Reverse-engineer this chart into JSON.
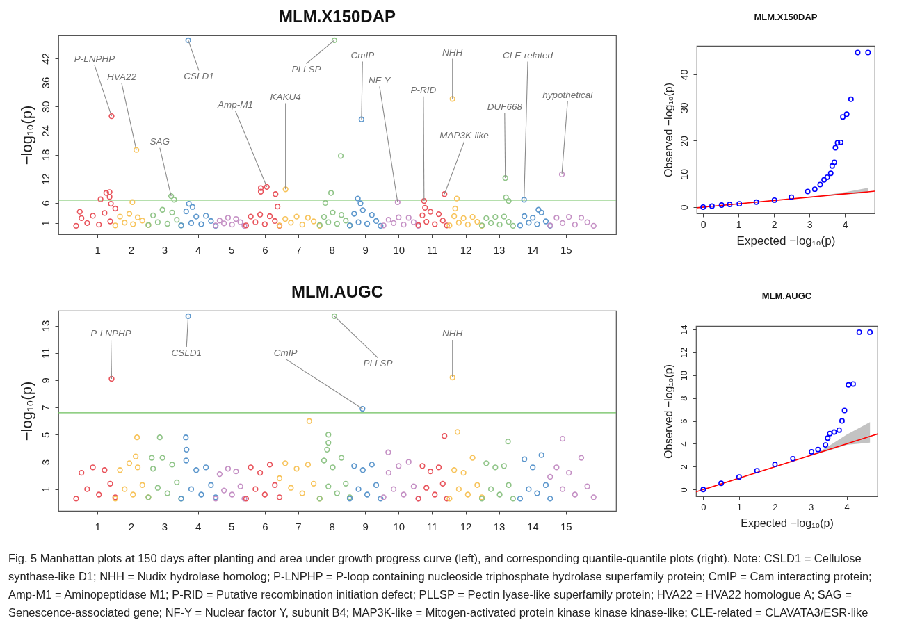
{
  "chart_data": [
    {
      "type": "scatter",
      "title": "MLM.X150DAP",
      "ylabel": "−log₁₀(p)",
      "marker": "circle",
      "xlim": [
        -0.17,
        16.5
      ],
      "ylim": [
        -1.8,
        47.7
      ],
      "xticks": [
        1,
        2,
        3,
        4,
        5,
        6,
        7,
        8,
        9,
        10,
        11,
        12,
        13,
        14,
        15
      ],
      "yticks": [
        1,
        6,
        12,
        18,
        24,
        30,
        36,
        42
      ],
      "ref_lines": [
        {
          "axis": "y",
          "value": 6.7,
          "color": "#6cbf5c"
        }
      ],
      "series": [
        {
          "type": "scatter",
          "color": "#e8525a",
          "x": [
            0.36,
            0.52,
            0.69,
            0.86,
            1.04,
            1.21,
            1.38,
            1.53,
            0.47,
            1.26,
            1.36,
            1.09,
            1.36,
            1.4,
            1.42
          ],
          "values": [
            0.3,
            2.2,
            1.0,
            2.8,
            0.6,
            3.5,
            1.4,
            4.6,
            3.8,
            8.5,
            8.7,
            6.9,
            7.5,
            5.8,
            27.6
          ]
        },
        {
          "type": "scatter",
          "color": "#f7c35a",
          "x": [
            1.53,
            1.67,
            1.81,
            1.95,
            2.06,
            2.2,
            2.34,
            2.52,
            2.04,
            2.16
          ],
          "values": [
            0.4,
            2.6,
            1.1,
            3.3,
            0.7,
            2.4,
            1.6,
            0.5,
            6.2,
            19.2
          ]
        },
        {
          "type": "scatter",
          "color": "#8fc487",
          "x": [
            2.52,
            2.66,
            2.8,
            2.94,
            3.09,
            3.23,
            3.37,
            3.5,
            3.2,
            3.29
          ],
          "values": [
            0.5,
            2.9,
            1.2,
            4.3,
            0.8,
            3.6,
            1.8,
            0.4,
            7.7,
            6.8
          ]
        },
        {
          "type": "scatter",
          "color": "#5b96cc",
          "x": [
            3.5,
            3.65,
            3.8,
            3.95,
            4.1,
            4.24,
            4.39,
            4.53,
            3.71,
            3.73,
            3.84
          ],
          "values": [
            0.4,
            3.9,
            1.0,
            2.6,
            0.7,
            2.8,
            1.5,
            0.3,
            46.5,
            5.8,
            5.0
          ]
        },
        {
          "type": "scatter",
          "color": "#c48fc4",
          "x": [
            4.53,
            4.65,
            4.78,
            4.9,
            5.02,
            5.14,
            5.27,
            5.39
          ],
          "values": [
            0.4,
            1.6,
            0.9,
            2.3,
            0.6,
            2.0,
            1.2,
            0.3
          ]
        },
        {
          "type": "scatter",
          "color": "#e8525a",
          "x": [
            5.44,
            5.58,
            5.72,
            5.86,
            6.0,
            6.15,
            6.3,
            6.44,
            5.88,
            5.88,
            6.06,
            6.32,
            6.38
          ],
          "values": [
            0.4,
            2.6,
            1.2,
            3.1,
            0.7,
            2.7,
            1.5,
            0.3,
            9.7,
            8.8,
            10.0,
            8.2,
            5.1
          ]
        },
        {
          "type": "scatter",
          "color": "#f7c35a",
          "x": [
            6.44,
            6.61,
            6.78,
            6.95,
            7.12,
            7.29,
            7.46,
            7.64,
            6.62
          ],
          "values": [
            0.4,
            2.0,
            1.1,
            2.6,
            0.6,
            2.3,
            1.4,
            0.3,
            9.4
          ]
        },
        {
          "type": "scatter",
          "color": "#8fc487",
          "x": [
            7.64,
            7.77,
            7.9,
            8.03,
            8.16,
            8.29,
            8.42,
            8.54,
            8.08,
            8.27,
            7.98,
            7.81
          ],
          "values": [
            0.5,
            2.5,
            1.2,
            3.6,
            0.8,
            3.0,
            1.6,
            0.4,
            46.5,
            17.7,
            8.5,
            6.0
          ]
        },
        {
          "type": "scatter",
          "color": "#5b96cc",
          "x": [
            8.54,
            8.67,
            8.8,
            8.93,
            9.06,
            9.2,
            9.33,
            9.46,
            8.89,
            8.78,
            8.86
          ],
          "values": [
            0.4,
            3.3,
            1.2,
            4.2,
            0.8,
            3.0,
            1.5,
            0.3,
            26.8,
            7.1,
            5.9
          ]
        },
        {
          "type": "scatter",
          "color": "#c48fc4",
          "x": [
            9.55,
            9.7,
            9.85,
            10.0,
            10.15,
            10.3,
            10.45,
            10.59,
            9.97
          ],
          "values": [
            0.4,
            1.8,
            1.0,
            2.4,
            0.6,
            2.3,
            1.2,
            0.3,
            6.2
          ]
        },
        {
          "type": "scatter",
          "color": "#e8525a",
          "x": [
            10.59,
            10.71,
            10.83,
            10.95,
            11.08,
            11.2,
            11.32,
            11.44,
            10.76,
            10.79,
            11.37
          ],
          "values": [
            0.5,
            2.9,
            1.3,
            3.8,
            0.7,
            3.2,
            1.6,
            0.4,
            6.5,
            4.8,
            8.2
          ]
        },
        {
          "type": "scatter",
          "color": "#f7c35a",
          "x": [
            11.52,
            11.66,
            11.8,
            11.94,
            12.07,
            12.21,
            12.35,
            12.49,
            11.61,
            11.74,
            11.69
          ],
          "values": [
            0.4,
            2.7,
            1.1,
            2.2,
            0.6,
            2.5,
            1.3,
            0.3,
            31.9,
            7.1,
            4.6
          ]
        },
        {
          "type": "scatter",
          "color": "#8fc487",
          "x": [
            12.49,
            12.62,
            12.76,
            12.89,
            13.02,
            13.15,
            13.29,
            13.42,
            13.19,
            13.21,
            13.29
          ],
          "values": [
            0.4,
            2.2,
            1.0,
            2.5,
            0.6,
            2.6,
            1.3,
            0.3,
            12.2,
            7.4,
            6.5
          ]
        },
        {
          "type": "scatter",
          "color": "#5b96cc",
          "x": [
            13.63,
            13.76,
            13.89,
            14.01,
            14.14,
            14.27,
            14.4,
            14.53,
            13.75,
            14.18
          ],
          "values": [
            0.4,
            2.7,
            1.1,
            2.3,
            0.7,
            3.6,
            1.4,
            0.3,
            6.8,
            4.3
          ]
        },
        {
          "type": "scatter",
          "color": "#c48fc4",
          "x": [
            14.53,
            14.72,
            14.9,
            15.09,
            15.27,
            15.46,
            15.64,
            15.83,
            14.88
          ],
          "values": [
            0.4,
            2.3,
            1.0,
            2.5,
            0.6,
            2.3,
            1.2,
            0.3,
            13.1
          ]
        }
      ],
      "annotations": [
        {
          "text": "P-LNPHP",
          "x": 1.42,
          "y": 27.6
        },
        {
          "text": "HVA22",
          "x": 2.16,
          "y": 19.2
        },
        {
          "text": "SAG",
          "x": 3.2,
          "y": 7.7
        },
        {
          "text": "CSLD1",
          "x": 3.71,
          "y": 46.5
        },
        {
          "text": "Amp-M1",
          "x": 6.06,
          "y": 10.0
        },
        {
          "text": "KAKU4",
          "x": 6.62,
          "y": 9.4
        },
        {
          "text": "PLLSP",
          "x": 8.08,
          "y": 46.5
        },
        {
          "text": "CmIP",
          "x": 8.89,
          "y": 26.8
        },
        {
          "text": "NF-Y",
          "x": 9.97,
          "y": 6.2
        },
        {
          "text": "P-RID",
          "x": 10.76,
          "y": 6.5
        },
        {
          "text": "NHH",
          "x": 11.61,
          "y": 31.9
        },
        {
          "text": "MAP3K-like",
          "x": 11.37,
          "y": 8.2
        },
        {
          "text": "DUF668",
          "x": 13.19,
          "y": 12.2
        },
        {
          "text": "CLE-related",
          "x": 13.75,
          "y": 6.8
        },
        {
          "text": "hypothetical",
          "x": 14.88,
          "y": 13.1
        },
        "Fig. 5 Manhattan plots at 150 days after planting and area under growth progress curve (left), and corresponding quantile-quantile plots (right). Note: CSLD1 = Cellulose synthase-like D1; NHH = Nudix hydrolase homolog; P-LNPHP = P-loop containing nucleoside triphosphate hydrolase superfamily protein; CmIP = Cam interacting protein; Amp-M1 = Aminopeptidase M1; P-RID = Putative recombination initiation defect; PLLSP = Pectin lyase-like superfamily protein; HVA22 = HVA22 homologue A; SAG = Senescence-associated gene; NF-Y = Nuclear factor Y, subunit B4; MAP3K-like = Mitogen-activated protein kinase kinase kinase-like; CLE-related = CLAVATA3/ESR-like"
      ]
    },
    {
      "type": "scatter",
      "title": "MLM.X150DAP",
      "xlabel": "Expected −log₁₀(p)",
      "ylabel": "Observed −log₁₀(p)",
      "xlim": [
        -0.18,
        4.84
      ],
      "ylim": [
        -1.9,
        48.6
      ],
      "xticks": [
        0,
        1,
        2,
        3,
        4
      ],
      "yticks": [
        0,
        10,
        20,
        30,
        40
      ],
      "series": [
        {
          "type": "line",
          "marker": "none",
          "color": "#ff0000",
          "x": [
            -0.18,
            3,
            3.5,
            4,
            4.65,
            4.84
          ],
          "values": [
            -0.2,
            3,
            3.5,
            4,
            4.6,
            4.8
          ],
          "lower": [
            null,
            2.9,
            3.4,
            3.8,
            4.3,
            null
          ],
          "upper": [
            null,
            3.1,
            3.7,
            4.5,
            5.8,
            null
          ]
        },
        {
          "type": "scatter",
          "marker": "circle",
          "color": "#0000ff",
          "x": [
            0,
            0.25,
            0.52,
            0.75,
            1.02,
            1.5,
            2.01,
            2.49,
            2.95,
            3.15,
            3.3,
            3.41,
            3.5,
            3.6,
            3.64,
            3.7,
            3.73,
            3.79,
            3.88,
            3.94,
            4.05,
            4.17,
            4.36,
            4.65
          ],
          "values": [
            0,
            0.3,
            0.6,
            0.8,
            1.0,
            1.5,
            2.1,
            3.0,
            4.7,
            5.4,
            6.8,
            8.2,
            9.0,
            10.2,
            12.4,
            13.5,
            17.9,
            19.4,
            19.5,
            27.2,
            28.0,
            32.5,
            46.6,
            46.6
          ]
        }
      ]
    },
    {
      "type": "scatter",
      "title": "MLM.AUGC",
      "ylabel": "−log₁₀(p)",
      "marker": "circle",
      "xlim": [
        -0.17,
        16.5
      ],
      "ylim": [
        -0.6,
        14.1
      ],
      "xticks": [
        1,
        2,
        3,
        4,
        5,
        6,
        7,
        8,
        9,
        10,
        11,
        12,
        13,
        14,
        15
      ],
      "yticks": [
        1,
        3,
        5,
        7,
        9,
        11,
        13
      ],
      "ref_lines": [
        {
          "axis": "y",
          "value": 6.6,
          "color": "#6cbf5c"
        }
      ],
      "series": [
        {
          "type": "scatter",
          "color": "#e8525a",
          "x": [
            0.36,
            0.52,
            0.69,
            0.86,
            1.04,
            1.21,
            1.38,
            1.53,
            1.42
          ],
          "values": [
            0.3,
            2.2,
            1.0,
            2.6,
            0.6,
            2.4,
            1.4,
            0.4,
            9.1
          ]
        },
        {
          "type": "scatter",
          "color": "#f7c35a",
          "x": [
            1.53,
            1.67,
            1.81,
            1.95,
            2.06,
            2.2,
            2.34,
            2.52,
            2.18,
            2.14
          ],
          "values": [
            0.3,
            2.4,
            1.0,
            2.9,
            0.6,
            2.6,
            1.3,
            0.4,
            4.8,
            3.4
          ]
        },
        {
          "type": "scatter",
          "color": "#8fc487",
          "x": [
            2.52,
            2.66,
            2.8,
            2.94,
            3.09,
            3.23,
            3.37,
            3.5,
            2.86,
            2.62
          ],
          "values": [
            0.4,
            2.5,
            1.1,
            3.3,
            0.7,
            2.8,
            1.5,
            0.3,
            4.8,
            3.3
          ]
        },
        {
          "type": "scatter",
          "color": "#5b96cc",
          "x": [
            3.5,
            3.65,
            3.8,
            3.95,
            4.1,
            4.24,
            4.39,
            4.53,
            3.71,
            3.64,
            3.66
          ],
          "values": [
            0.3,
            3.1,
            1.0,
            2.4,
            0.6,
            2.6,
            1.3,
            0.4,
            13.7,
            4.8,
            3.9
          ]
        },
        {
          "type": "scatter",
          "color": "#c48fc4",
          "x": [
            4.53,
            4.65,
            4.78,
            4.9,
            5.02,
            5.14,
            5.27,
            5.39
          ],
          "values": [
            0.3,
            2.1,
            0.9,
            2.5,
            0.6,
            2.3,
            1.2,
            0.3
          ]
        },
        {
          "type": "scatter",
          "color": "#e8525a",
          "x": [
            5.44,
            5.58,
            5.72,
            5.86,
            6.0,
            6.15,
            6.3,
            6.44
          ],
          "values": [
            0.3,
            2.6,
            1.0,
            2.2,
            0.6,
            2.8,
            1.3,
            0.4
          ]
        },
        {
          "type": "scatter",
          "color": "#f7c35a",
          "x": [
            6.44,
            6.61,
            6.78,
            6.95,
            7.12,
            7.29,
            7.46,
            7.64,
            7.33
          ],
          "values": [
            1.8,
            2.9,
            1.1,
            2.5,
            0.7,
            2.8,
            1.4,
            0.3,
            6.0
          ]
        },
        {
          "type": "scatter",
          "color": "#8fc487",
          "x": [
            7.64,
            7.77,
            7.9,
            8.03,
            8.16,
            8.29,
            8.42,
            8.54,
            8.08,
            7.9,
            7.9,
            7.86
          ],
          "values": [
            0.3,
            3.1,
            1.2,
            2.6,
            0.7,
            3.3,
            1.4,
            0.4,
            13.7,
            5.0,
            4.4,
            3.9
          ]
        },
        {
          "type": "scatter",
          "color": "#5b96cc",
          "x": [
            8.54,
            8.67,
            8.8,
            8.93,
            9.06,
            9.2,
            9.33,
            9.46,
            8.92
          ],
          "values": [
            0.3,
            2.7,
            1.0,
            2.4,
            0.6,
            2.8,
            1.3,
            0.3,
            6.9
          ]
        },
        {
          "type": "scatter",
          "color": "#c48fc4",
          "x": [
            9.55,
            9.7,
            9.85,
            10.0,
            10.15,
            10.3,
            10.45,
            10.59,
            9.69
          ],
          "values": [
            0.4,
            2.2,
            1.0,
            2.7,
            0.6,
            3.0,
            1.2,
            0.3,
            3.7
          ]
        },
        {
          "type": "scatter",
          "color": "#e8525a",
          "x": [
            10.59,
            10.71,
            10.83,
            10.95,
            11.08,
            11.2,
            11.32,
            11.44,
            11.37
          ],
          "values": [
            0.3,
            2.7,
            1.1,
            2.3,
            0.6,
            2.6,
            1.4,
            0.3,
            4.9
          ]
        },
        {
          "type": "scatter",
          "color": "#f7c35a",
          "x": [
            11.52,
            11.66,
            11.8,
            11.94,
            12.07,
            12.21,
            12.35,
            12.49,
            11.61,
            11.76
          ],
          "values": [
            0.3,
            2.4,
            1.0,
            2.2,
            0.6,
            3.3,
            1.3,
            0.4,
            9.2,
            5.2
          ]
        },
        {
          "type": "scatter",
          "color": "#8fc487",
          "x": [
            12.49,
            12.62,
            12.76,
            12.89,
            13.02,
            13.15,
            13.29,
            13.42,
            13.27
          ],
          "values": [
            0.3,
            2.9,
            1.0,
            2.6,
            0.6,
            2.7,
            1.3,
            0.3,
            4.5
          ]
        },
        {
          "type": "scatter",
          "color": "#5b96cc",
          "x": [
            13.63,
            13.76,
            13.89,
            14.01,
            14.14,
            14.27,
            14.4,
            14.53
          ],
          "values": [
            0.3,
            3.2,
            1.0,
            2.6,
            0.7,
            3.5,
            1.3,
            0.3
          ]
        },
        {
          "type": "scatter",
          "color": "#c48fc4",
          "x": [
            14.53,
            14.72,
            14.9,
            15.09,
            15.27,
            15.46,
            15.64,
            15.83,
            14.9
          ],
          "values": [
            1.9,
            2.6,
            1.0,
            2.2,
            0.6,
            3.3,
            1.2,
            0.4,
            4.7
          ]
        }
      ],
      "annotations": [
        {
          "text": "P-LNPHP",
          "x": 1.42,
          "y": 9.1
        },
        {
          "text": "CSLD1",
          "x": 3.71,
          "y": 13.7
        },
        {
          "text": "CmIP",
          "x": 8.92,
          "y": 6.9
        },
        {
          "text": "PLLSP",
          "x": 8.08,
          "y": 13.7
        },
        {
          "text": "NHH",
          "x": 11.61,
          "y": 9.2
        }
      ]
    },
    {
      "type": "scatter",
      "title": "MLM.AUGC",
      "xlabel": "Expected −log₁₀(p)",
      "ylabel": "Observed −log₁₀(p)",
      "xlim": [
        -0.2,
        4.86
      ],
      "ylim": [
        -0.59,
        14.3
      ],
      "xticks": [
        0,
        1,
        2,
        3,
        4
      ],
      "yticks": [
        0,
        2,
        4,
        6,
        8,
        10,
        12,
        14
      ],
      "series": [
        {
          "type": "line",
          "marker": "none",
          "color": "#ff0000",
          "x": [
            -0.2,
            3.2,
            3.5,
            4,
            4.65,
            4.86
          ],
          "values": [
            -0.2,
            3.2,
            3.5,
            4,
            4.65,
            4.86
          ],
          "lower": [
            null,
            3.15,
            3.4,
            3.9,
            4.1,
            null
          ],
          "upper": [
            null,
            3.25,
            3.8,
            4.8,
            5.9,
            null
          ]
        },
        {
          "type": "scatter",
          "marker": "circle",
          "color": "#0000ff",
          "x": [
            0,
            0.5,
            1,
            1.5,
            2,
            2.5,
            3.02,
            3.2,
            3.41,
            3.47,
            3.53,
            3.65,
            3.79,
            3.87,
            3.94,
            4.05,
            4.18,
            4.35,
            4.65
          ],
          "values": [
            0,
            0.55,
            1.1,
            1.65,
            2.2,
            2.7,
            3.3,
            3.5,
            3.9,
            4.5,
            4.9,
            5.03,
            5.2,
            6.0,
            6.92,
            9.15,
            9.23,
            13.76,
            13.76
          ]
        }
      ]
    }
  ]
}
